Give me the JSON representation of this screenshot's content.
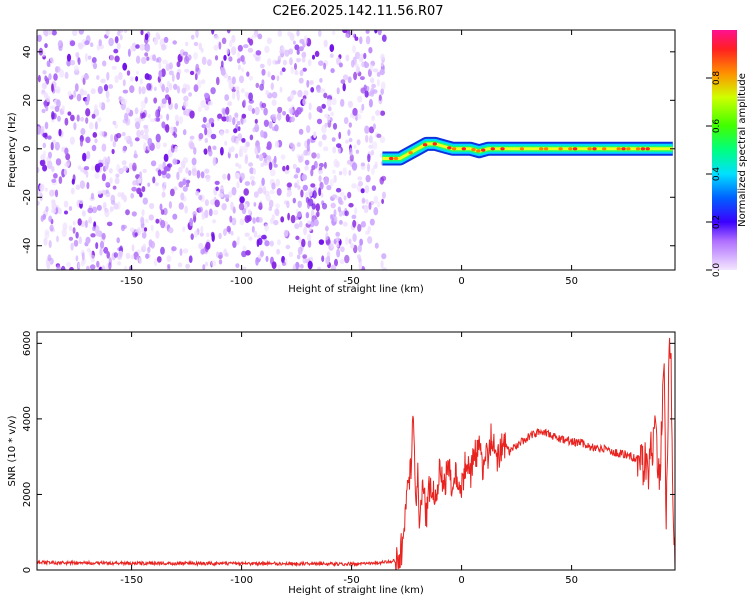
{
  "title": "C2E6.2025.142.11.56.R07",
  "colors": {
    "snr_line": "#e8231f",
    "noise_purple": "#8a2be2",
    "axis": "#000000"
  },
  "chart_data": [
    {
      "type": "heatmap",
      "xlabel": "Height of straight line (km)",
      "ylabel": "Frequency (Hz)",
      "xlim": [
        -193,
        97
      ],
      "ylim": [
        -50,
        49
      ],
      "xticks": [
        -150,
        -100,
        -50,
        0,
        50
      ],
      "yticks": [
        -40,
        -20,
        0,
        20,
        40
      ],
      "colorbar": {
        "label": "Normalized spectral amplitude",
        "range": [
          0,
          1
        ],
        "ticks": [
          "0.0",
          "0.2",
          "0.4",
          "0.6",
          "0.8"
        ],
        "tick_values": [
          0,
          0.2,
          0.4,
          0.6,
          0.8
        ]
      },
      "noise_region_x": [
        -193,
        -35
      ],
      "signal_track": {
        "x": [
          -36,
          -32,
          -28,
          -24,
          -20,
          -16,
          -12,
          -8,
          -4,
          0,
          4,
          8,
          12,
          20,
          30,
          40,
          50,
          60,
          70,
          80,
          90,
          96
        ],
        "y": [
          -4,
          -4,
          -4,
          -2,
          0,
          2,
          2,
          1,
          0,
          0,
          0,
          -1,
          0,
          0,
          0,
          0,
          0,
          0,
          0,
          0,
          0,
          0
        ]
      }
    },
    {
      "type": "line",
      "xlabel": "Height of straight line (km)",
      "ylabel": "SNR (10 * v/v)",
      "xlim": [
        -193,
        97
      ],
      "ylim": [
        0,
        6300
      ],
      "xticks": [
        -150,
        -100,
        -50,
        0,
        50
      ],
      "yticks": [
        0,
        2000,
        4000,
        6000
      ],
      "series": [
        {
          "x": [
            -193,
            -150,
            -100,
            -50,
            -40,
            -35,
            -30,
            -27,
            -25,
            -23,
            -22,
            -21,
            -20,
            -19,
            -18,
            -16,
            -14,
            -12,
            -10,
            -8,
            -6,
            -4,
            -2,
            0,
            2,
            4,
            6,
            8,
            10,
            12,
            14,
            16,
            18,
            20,
            22,
            25,
            30,
            35,
            40,
            45,
            50,
            55,
            60,
            65,
            70,
            75,
            80,
            85,
            88,
            90,
            92,
            93,
            94,
            95,
            96,
            97
          ],
          "values": [
            200,
            180,
            170,
            160,
            170,
            200,
            250,
            600,
            1800,
            2800,
            4500,
            1600,
            2600,
            900,
            2200,
            1500,
            2400,
            1800,
            2600,
            2100,
            2800,
            2200,
            2600,
            2300,
            2900,
            2500,
            3000,
            3300,
            2700,
            3100,
            3600,
            3000,
            3200,
            3300,
            3100,
            3300,
            3500,
            3650,
            3600,
            3450,
            3400,
            3350,
            3250,
            3200,
            3100,
            3050,
            2950,
            2700,
            3800,
            2200,
            5400,
            1200,
            4800,
            6300,
            2000,
            500
          ]
        }
      ]
    }
  ]
}
